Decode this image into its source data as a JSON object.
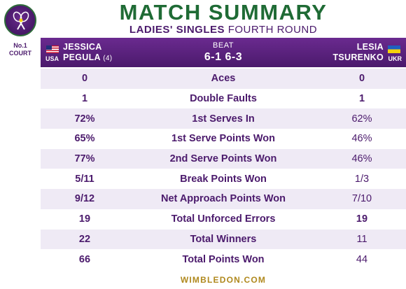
{
  "brand": {
    "logo_text": "THE CHAMPIONSHIPS WIMBLEDON",
    "court": "No.1",
    "court_sub": "COURT",
    "footer": "WIMBLEDON.COM"
  },
  "title": "MATCH SUMMARY",
  "subtitle": {
    "event": "LADIES' SINGLES",
    "round": "FOURTH ROUND"
  },
  "header": {
    "player1": {
      "first": "JESSICA",
      "last": "PEGULA",
      "seed": "(4)",
      "country": "USA"
    },
    "result": {
      "verb": "BEAT",
      "score": "6-1 6-3"
    },
    "player2": {
      "first": "LESIA",
      "last": "TSURENKO",
      "country": "UKR"
    }
  },
  "stats": [
    {
      "label": "Aces",
      "p1": "0",
      "p2": "0",
      "p2_bold": true
    },
    {
      "label": "Double Faults",
      "p1": "1",
      "p2": "1",
      "p2_bold": true
    },
    {
      "label": "1st Serves In",
      "p1": "72%",
      "p2": "62%",
      "p2_bold": false
    },
    {
      "label": "1st Serve Points Won",
      "p1": "65%",
      "p2": "46%",
      "p2_bold": false
    },
    {
      "label": "2nd Serve Points Won",
      "p1": "77%",
      "p2": "46%",
      "p2_bold": false
    },
    {
      "label": "Break Points Won",
      "p1": "5/11",
      "p2": "1/3",
      "p2_bold": false
    },
    {
      "label": "Net Approach Points Won",
      "p1": "9/12",
      "p2": "7/10",
      "p2_bold": false
    },
    {
      "label": "Total Unforced Errors",
      "p1": "19",
      "p2": "19",
      "p2_bold": true
    },
    {
      "label": "Total Winners",
      "p1": "22",
      "p2": "11",
      "p2_bold": false
    },
    {
      "label": "Total Points Won",
      "p1": "66",
      "p2": "44",
      "p2_bold": false
    }
  ],
  "colors": {
    "purple": "#4b1a6c",
    "green": "#1f6b35",
    "gold": "#b0891e",
    "stripe": "#efeaf5"
  }
}
